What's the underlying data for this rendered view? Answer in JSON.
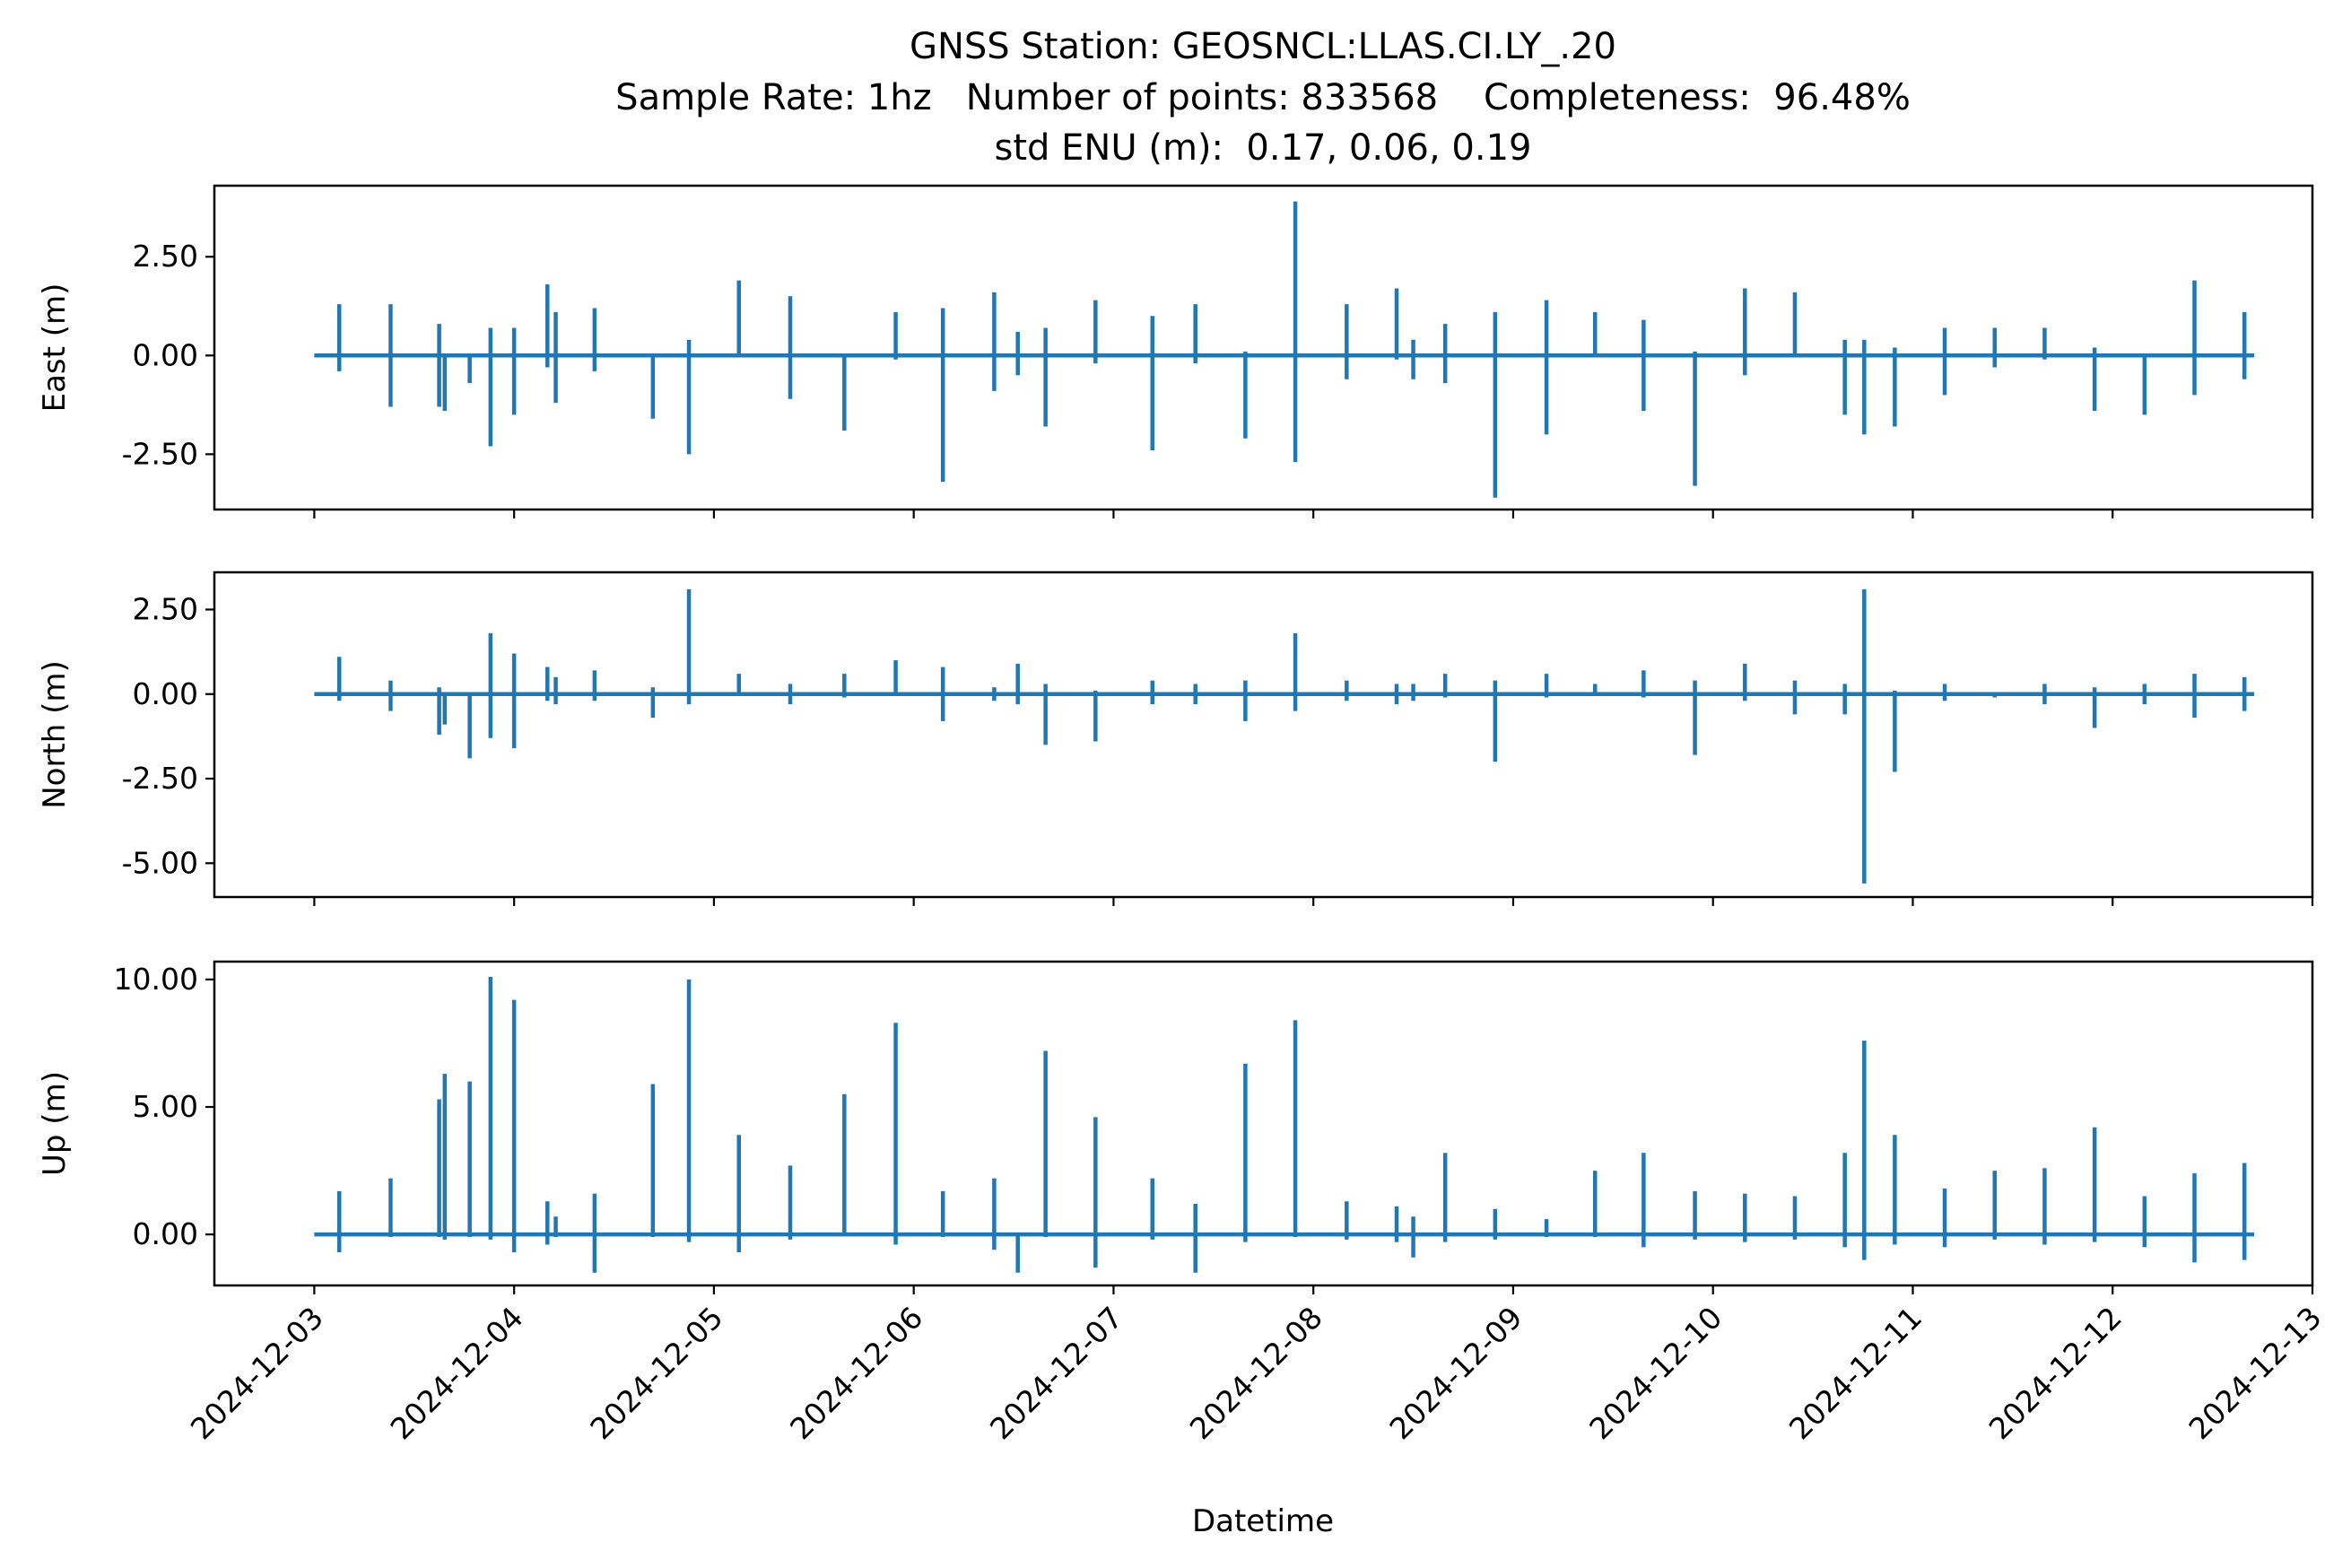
{
  "chart_data": {
    "type": "line",
    "title": "GNSS Station: GEOSNCL:LLAS.CI.LY_.20",
    "subtitle": "Sample Rate: 1hz   Number of points: 833568    Completeness:  96.48%",
    "subtitle2": "std ENU (m):  0.17, 0.06, 0.19",
    "xlabel": "Datetime",
    "xlim": [
      "2024-12-02 12:00",
      "2024-12-13 00:00"
    ],
    "x_ticks": [
      "2024-12-03",
      "2024-12-04",
      "2024-12-05",
      "2024-12-06",
      "2024-12-07",
      "2024-12-08",
      "2024-12-09",
      "2024-12-10",
      "2024-12-11",
      "2024-12-12",
      "2024-12-13"
    ],
    "x_range": [
      "2024-12-03 00:00",
      "2024-12-12 17:00"
    ],
    "color": "#1f77b4",
    "grid": false,
    "legend": "none",
    "panels": [
      {
        "name": "East",
        "ylabel": "East (m)",
        "ylim": [
          -3.9,
          4.3
        ],
        "y_ticks": [
          "2.50",
          "0.00",
          "-2.50"
        ],
        "y_tick_values": [
          2.5,
          0.0,
          -2.5
        ],
        "spikes": [
          [
            "2024-12-03 03:00",
            1.3,
            -0.4
          ],
          [
            "2024-12-03 09:10",
            1.3,
            -1.3
          ],
          [
            "2024-12-03 15:00",
            0.8,
            -1.3
          ],
          [
            "2024-12-03 15:40",
            0.0,
            -1.4
          ],
          [
            "2024-12-03 18:40",
            0.0,
            -0.7
          ],
          [
            "2024-12-03 21:10",
            0.7,
            -2.3
          ],
          [
            "2024-12-04 00:00",
            0.7,
            -1.5
          ],
          [
            "2024-12-04 04:00",
            1.8,
            -0.3
          ],
          [
            "2024-12-04 05:00",
            1.1,
            -1.2
          ],
          [
            "2024-12-04 09:40",
            1.2,
            -0.4
          ],
          [
            "2024-12-04 16:40",
            0.0,
            -1.6
          ],
          [
            "2024-12-04 21:00",
            0.4,
            -2.5
          ],
          [
            "2024-12-05 03:00",
            1.9,
            0.0
          ],
          [
            "2024-12-05 09:10",
            1.5,
            -1.1
          ],
          [
            "2024-12-05 15:40",
            0.0,
            -1.9
          ],
          [
            "2024-12-05 21:50",
            1.1,
            -0.1
          ],
          [
            "2024-12-06 03:30",
            1.2,
            -3.2
          ],
          [
            "2024-12-06 09:40",
            1.6,
            -0.9
          ],
          [
            "2024-12-06 12:30",
            0.6,
            -0.5
          ],
          [
            "2024-12-06 15:50",
            0.7,
            -1.8
          ],
          [
            "2024-12-06 21:50",
            1.4,
            -0.2
          ],
          [
            "2024-12-07 04:40",
            1.0,
            -2.4
          ],
          [
            "2024-12-07 09:50",
            1.3,
            -0.2
          ],
          [
            "2024-12-07 15:50",
            0.1,
            -2.1
          ],
          [
            "2024-12-07 21:50",
            3.9,
            -2.7
          ],
          [
            "2024-12-08 04:00",
            1.3,
            -0.6
          ],
          [
            "2024-12-08 10:00",
            1.7,
            -0.1
          ],
          [
            "2024-12-08 12:00",
            0.4,
            -0.6
          ],
          [
            "2024-12-08 15:50",
            0.8,
            -0.7
          ],
          [
            "2024-12-08 21:50",
            1.1,
            -3.6
          ],
          [
            "2024-12-09 04:00",
            1.4,
            -2.0
          ],
          [
            "2024-12-09 09:50",
            1.1,
            0.0
          ],
          [
            "2024-12-09 15:40",
            0.9,
            -1.4
          ],
          [
            "2024-12-09 21:50",
            0.1,
            -3.3
          ],
          [
            "2024-12-10 03:50",
            1.7,
            -0.5
          ],
          [
            "2024-12-10 09:50",
            1.6,
            0.0
          ],
          [
            "2024-12-10 15:50",
            0.4,
            -1.5
          ],
          [
            "2024-12-10 18:10",
            0.4,
            -2.0
          ],
          [
            "2024-12-10 21:50",
            0.2,
            -1.8
          ],
          [
            "2024-12-11 03:50",
            0.7,
            -1.0
          ],
          [
            "2024-12-11 09:50",
            0.7,
            -0.3
          ],
          [
            "2024-12-11 15:50",
            0.7,
            -0.1
          ],
          [
            "2024-12-11 21:50",
            0.2,
            -1.4
          ],
          [
            "2024-12-12 03:50",
            0.0,
            -1.5
          ],
          [
            "2024-12-12 09:50",
            1.9,
            -1.0
          ],
          [
            "2024-12-12 15:50",
            1.1,
            -0.6
          ]
        ]
      },
      {
        "name": "North",
        "ylabel": "North (m)",
        "ylim": [
          -6.0,
          3.6
        ],
        "y_ticks": [
          "2.50",
          "0.00",
          "-2.50",
          "-5.00"
        ],
        "y_tick_values": [
          2.5,
          0.0,
          -2.5,
          -5.0
        ],
        "spikes": [
          [
            "2024-12-03 03:00",
            1.1,
            -0.2
          ],
          [
            "2024-12-03 09:10",
            0.4,
            -0.5
          ],
          [
            "2024-12-03 15:00",
            0.2,
            -1.2
          ],
          [
            "2024-12-03 15:40",
            0.0,
            -0.9
          ],
          [
            "2024-12-03 18:40",
            0.0,
            -1.9
          ],
          [
            "2024-12-03 21:10",
            1.8,
            -1.3
          ],
          [
            "2024-12-04 00:00",
            1.2,
            -1.6
          ],
          [
            "2024-12-04 04:00",
            0.8,
            -0.2
          ],
          [
            "2024-12-04 05:00",
            0.5,
            -0.3
          ],
          [
            "2024-12-04 09:40",
            0.7,
            -0.2
          ],
          [
            "2024-12-04 16:40",
            0.2,
            -0.7
          ],
          [
            "2024-12-04 21:00",
            3.1,
            -0.3
          ],
          [
            "2024-12-05 03:00",
            0.6,
            0.0
          ],
          [
            "2024-12-05 09:10",
            0.3,
            -0.3
          ],
          [
            "2024-12-05 15:40",
            0.6,
            -0.1
          ],
          [
            "2024-12-05 21:50",
            1.0,
            0.0
          ],
          [
            "2024-12-06 03:30",
            0.8,
            -0.8
          ],
          [
            "2024-12-06 09:40",
            0.2,
            -0.2
          ],
          [
            "2024-12-06 12:30",
            0.9,
            -0.3
          ],
          [
            "2024-12-06 15:50",
            0.3,
            -1.5
          ],
          [
            "2024-12-06 21:50",
            0.1,
            -1.4
          ],
          [
            "2024-12-07 04:40",
            0.4,
            -0.3
          ],
          [
            "2024-12-07 09:50",
            0.3,
            -0.3
          ],
          [
            "2024-12-07 15:50",
            0.4,
            -0.8
          ],
          [
            "2024-12-07 21:50",
            1.8,
            -0.5
          ],
          [
            "2024-12-08 04:00",
            0.4,
            -0.2
          ],
          [
            "2024-12-08 10:00",
            0.3,
            -0.3
          ],
          [
            "2024-12-08 12:00",
            0.3,
            -0.2
          ],
          [
            "2024-12-08 15:50",
            0.6,
            -0.1
          ],
          [
            "2024-12-08 21:50",
            0.4,
            -2.0
          ],
          [
            "2024-12-09 04:00",
            0.6,
            -0.1
          ],
          [
            "2024-12-09 09:50",
            0.3,
            0.0
          ],
          [
            "2024-12-09 15:40",
            0.7,
            -0.1
          ],
          [
            "2024-12-09 21:50",
            0.4,
            -1.8
          ],
          [
            "2024-12-10 03:50",
            0.9,
            -0.2
          ],
          [
            "2024-12-10 09:50",
            0.4,
            -0.6
          ],
          [
            "2024-12-10 15:50",
            0.3,
            -0.6
          ],
          [
            "2024-12-10 18:10",
            3.1,
            -5.6
          ],
          [
            "2024-12-10 21:50",
            0.1,
            -2.3
          ],
          [
            "2024-12-11 03:50",
            0.3,
            -0.2
          ],
          [
            "2024-12-11 09:50",
            0.0,
            -0.1
          ],
          [
            "2024-12-11 15:50",
            0.3,
            -0.3
          ],
          [
            "2024-12-11 21:50",
            0.2,
            -1.0
          ],
          [
            "2024-12-12 03:50",
            0.3,
            -0.3
          ],
          [
            "2024-12-12 09:50",
            0.6,
            -0.7
          ],
          [
            "2024-12-12 15:50",
            0.5,
            -0.5
          ]
        ]
      },
      {
        "name": "Up",
        "ylabel": "Up (m)",
        "ylim": [
          -2.0,
          10.7
        ],
        "y_ticks": [
          "10.00",
          "5.00",
          "0.00"
        ],
        "y_tick_values": [
          10.0,
          5.0,
          0.0
        ],
        "spikes": [
          [
            "2024-12-03 03:00",
            1.7,
            -0.7
          ],
          [
            "2024-12-03 09:10",
            2.2,
            -0.1
          ],
          [
            "2024-12-03 15:00",
            5.3,
            -0.1
          ],
          [
            "2024-12-03 15:40",
            6.3,
            -0.2
          ],
          [
            "2024-12-03 18:40",
            6.0,
            -0.1
          ],
          [
            "2024-12-03 21:10",
            10.1,
            -0.2
          ],
          [
            "2024-12-04 00:00",
            9.2,
            -0.7
          ],
          [
            "2024-12-04 04:00",
            1.3,
            -0.4
          ],
          [
            "2024-12-04 05:00",
            0.7,
            -0.1
          ],
          [
            "2024-12-04 09:40",
            1.6,
            -1.5
          ],
          [
            "2024-12-04 16:40",
            5.9,
            -0.1
          ],
          [
            "2024-12-04 21:00",
            10.0,
            -0.3
          ],
          [
            "2024-12-05 03:00",
            3.9,
            -0.7
          ],
          [
            "2024-12-05 09:10",
            2.7,
            -0.2
          ],
          [
            "2024-12-05 15:40",
            5.5,
            0.0
          ],
          [
            "2024-12-05 21:50",
            8.3,
            -0.4
          ],
          [
            "2024-12-06 03:30",
            1.7,
            -0.1
          ],
          [
            "2024-12-06 09:40",
            2.2,
            -0.6
          ],
          [
            "2024-12-06 12:30",
            0.0,
            -1.5
          ],
          [
            "2024-12-06 15:50",
            7.2,
            -0.1
          ],
          [
            "2024-12-06 21:50",
            4.6,
            -1.3
          ],
          [
            "2024-12-07 04:40",
            2.2,
            -0.2
          ],
          [
            "2024-12-07 09:50",
            1.2,
            -1.5
          ],
          [
            "2024-12-07 15:50",
            6.7,
            -0.3
          ],
          [
            "2024-12-07 21:50",
            8.4,
            -0.1
          ],
          [
            "2024-12-08 04:00",
            1.3,
            -0.2
          ],
          [
            "2024-12-08 10:00",
            1.1,
            -0.3
          ],
          [
            "2024-12-08 12:00",
            0.7,
            -0.9
          ],
          [
            "2024-12-08 15:50",
            3.2,
            -0.3
          ],
          [
            "2024-12-08 21:50",
            1.0,
            -0.2
          ],
          [
            "2024-12-09 04:00",
            0.6,
            -0.1
          ],
          [
            "2024-12-09 09:50",
            2.5,
            -0.1
          ],
          [
            "2024-12-09 15:40",
            3.2,
            -0.5
          ],
          [
            "2024-12-09 21:50",
            1.7,
            -0.2
          ],
          [
            "2024-12-10 03:50",
            1.6,
            -0.3
          ],
          [
            "2024-12-10 09:50",
            1.5,
            -0.2
          ],
          [
            "2024-12-10 15:50",
            3.2,
            -0.5
          ],
          [
            "2024-12-10 18:10",
            7.6,
            -1.0
          ],
          [
            "2024-12-10 21:50",
            3.9,
            -0.4
          ],
          [
            "2024-12-11 03:50",
            1.8,
            -0.5
          ],
          [
            "2024-12-11 09:50",
            2.5,
            -0.2
          ],
          [
            "2024-12-11 15:50",
            2.6,
            -0.4
          ],
          [
            "2024-12-11 21:50",
            4.2,
            -0.3
          ],
          [
            "2024-12-12 03:50",
            1.5,
            -0.5
          ],
          [
            "2024-12-12 09:50",
            2.4,
            -1.1
          ],
          [
            "2024-12-12 15:50",
            2.8,
            -1.0
          ]
        ]
      }
    ]
  }
}
